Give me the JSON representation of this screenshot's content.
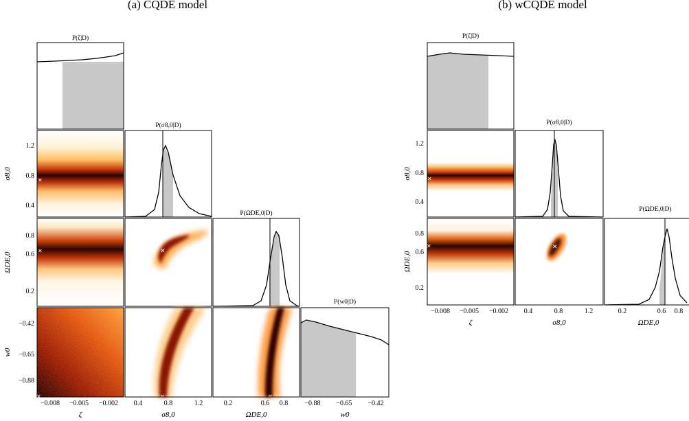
{
  "figure": {
    "type": "corner-plot",
    "panels": [
      {
        "id": "a",
        "caption": "(a) CQDE model",
        "parameters": [
          {
            "key": "zeta",
            "label": "ζ",
            "marginal_title": "P(ζ|D)",
            "range": [
              -0.0095,
              -0.0002
            ],
            "ticks": [
              -0.008,
              -0.005,
              -0.002
            ],
            "tick_labels": [
              "−0.008",
              "−0.005",
              "−0.002"
            ]
          },
          {
            "key": "sigma8",
            "label": "σ8,0",
            "marginal_title": "P(σ8,0|D)",
            "range": [
              0.25,
              1.45
            ],
            "ticks": [
              0.4,
              0.8,
              1.2
            ],
            "tick_labels": [
              "0.4",
              "0.8",
              "1.2"
            ]
          },
          {
            "key": "omega",
            "label": "ΩDE,0",
            "marginal_title": "P(ΩDE,0|D)",
            "range": [
              0.0,
              0.95
            ],
            "ticks": [
              0.2,
              0.6,
              0.8
            ],
            "tick_labels": [
              "0.2",
              "0.6",
              "0.8"
            ]
          },
          {
            "key": "w0",
            "label": "w0",
            "marginal_title": "P(w0|D)",
            "range": [
              -0.96,
              -0.33
            ],
            "ticks": [
              -0.88,
              -0.65,
              -0.42
            ],
            "tick_labels": [
              "−0.88",
              "−0.65",
              "−0.42"
            ]
          }
        ],
        "row_ticks": {
          "sigma8": {
            "ticks": [
              0.4,
              0.8,
              1.2
            ],
            "labels": [
              "0.4",
              "0.8",
              "1.2"
            ]
          },
          "omega": {
            "ticks": [
              0.2,
              0.6,
              0.8
            ],
            "labels": [
              "0.2",
              "0.6",
              "0.8"
            ]
          },
          "w0": {
            "ticks": [
              -0.88,
              -0.65,
              -0.42
            ],
            "labels": [
              "−0.88",
              "−0.65",
              "−0.42"
            ]
          }
        },
        "best_fit": {
          "zeta": -0.0095,
          "sigma8": 0.74,
          "omega": 0.66,
          "w0": -0.96
        }
      },
      {
        "id": "b",
        "caption": "(b) wCQDE model",
        "parameters": [
          {
            "key": "zeta",
            "label": "ζ",
            "marginal_title": "P(ζ|D)",
            "range": [
              -0.0095,
              -0.0002
            ],
            "ticks": [
              -0.008,
              -0.005,
              -0.002
            ],
            "tick_labels": [
              "−0.008",
              "−0.005",
              "−0.002"
            ]
          },
          {
            "key": "sigma8",
            "label": "σ8,0",
            "marginal_title": "P(σ8,0|D)",
            "range": [
              0.25,
              1.45
            ],
            "ticks": [
              0.4,
              0.8,
              1.2
            ],
            "tick_labels": [
              "0.4",
              "0.8",
              "1.2"
            ]
          },
          {
            "key": "omega",
            "label": "ΩDE,0",
            "marginal_title": "P(ΩDE,0|D)",
            "range": [
              0.0,
              0.95
            ],
            "ticks": [
              0.2,
              0.6,
              0.8
            ],
            "tick_labels": [
              "0.2",
              "0.6",
              "0.8"
            ]
          }
        ],
        "row_ticks": {
          "sigma8": {
            "ticks": [
              0.4,
              0.8,
              1.2
            ],
            "labels": [
              "0.4",
              "0.8",
              "1.2"
            ]
          },
          "omega": {
            "ticks": [
              0.2,
              0.6,
              0.8
            ],
            "labels": [
              "0.2",
              "0.6",
              "0.8"
            ]
          }
        },
        "best_fit": {
          "zeta": -0.0095,
          "sigma8": 0.72,
          "omega": 0.66
        }
      }
    ]
  },
  "chart_data": [
    {
      "type": "area",
      "title": "(a) CQDE model",
      "marginals": [
        {
          "parameter": "ζ",
          "title": "P(ζ|D)",
          "x": [
            -0.0095,
            -0.008,
            -0.006,
            -0.004,
            -0.002,
            -0.0002
          ],
          "density": [
            0.78,
            0.79,
            0.8,
            0.82,
            0.86,
            0.91
          ],
          "shaded_interval": [
            -0.0063,
            -0.0002
          ]
        },
        {
          "parameter": "σ8,0",
          "title": "P(σ8,0|D)",
          "mode": 0.78,
          "best_fit": 0.74,
          "shaded_interval": [
            0.74,
            0.86
          ]
        },
        {
          "parameter": "ΩDE,0",
          "title": "P(ΩDE,0|D)",
          "mode": 0.68,
          "best_fit": 0.66,
          "shaded_interval": [
            0.63,
            0.7
          ]
        },
        {
          "parameter": "w0",
          "title": "P(w0|D)",
          "x": [
            -0.96,
            -0.9,
            -0.8,
            -0.7,
            -0.6,
            -0.5,
            -0.42,
            -0.33
          ],
          "density": [
            0.73,
            0.74,
            0.7,
            0.66,
            0.62,
            0.57,
            0.53,
            0.49
          ],
          "shaded_interval": [
            -0.96,
            -0.62
          ]
        }
      ],
      "joint_posteriors": [
        {
          "x": "ζ",
          "y": "σ8,0",
          "shape": "horizontal band",
          "center_y": 0.78
        },
        {
          "x": "ζ",
          "y": "ΩDE,0",
          "shape": "slightly rising band",
          "center_y": 0.67
        },
        {
          "x": "σ8,0",
          "y": "ΩDE,0",
          "shape": "curved banana",
          "best_fit": [
            0.74,
            0.66
          ]
        },
        {
          "x": "ζ",
          "y": "w0",
          "shape": "diffuse, denser at low ζ and low w0"
        },
        {
          "x": "σ8,0",
          "y": "w0",
          "shape": "curved band toward high σ8,0 at high w0"
        },
        {
          "x": "ΩDE,0",
          "y": "w0",
          "shape": "narrow band tilting to higher ΩDE,0"
        }
      ],
      "colormap": [
        "#ffffff",
        "#ffe7b0",
        "#ffab3a",
        "#e0560d",
        "#9b1a00",
        "#2a0300"
      ]
    },
    {
      "type": "area",
      "title": "(b) wCQDE model",
      "marginals": [
        {
          "parameter": "ζ",
          "title": "P(ζ|D)",
          "x": [
            -0.0095,
            -0.008,
            -0.006,
            -0.004,
            -0.002,
            -0.0002
          ],
          "density": [
            0.83,
            0.85,
            0.84,
            0.83,
            0.83,
            0.82
          ],
          "shaded_interval": [
            -0.0095,
            -0.0031
          ]
        },
        {
          "parameter": "σ8,0",
          "title": "P(σ8,0|D)",
          "mode": 0.72,
          "best_fit": 0.72,
          "shaded_interval": [
            0.69,
            0.75
          ]
        },
        {
          "parameter": "ΩDE,0",
          "title": "P(ΩDE,0|D)",
          "mode": 0.68,
          "best_fit": 0.66,
          "shaded_interval": [
            0.61,
            0.69
          ]
        }
      ],
      "joint_posteriors": [
        {
          "x": "ζ",
          "y": "σ8,0",
          "shape": "thin horizontal band",
          "center_y": 0.72
        },
        {
          "x": "ζ",
          "y": "ΩDE,0",
          "shape": "horizontal band",
          "center_y": 0.66
        },
        {
          "x": "σ8,0",
          "y": "ΩDE,0",
          "shape": "small tilted ellipse",
          "best_fit": [
            0.72,
            0.66
          ]
        }
      ],
      "colormap": [
        "#ffffff",
        "#ffe7b0",
        "#ffab3a",
        "#e0560d",
        "#9b1a00",
        "#2a0300"
      ]
    }
  ]
}
